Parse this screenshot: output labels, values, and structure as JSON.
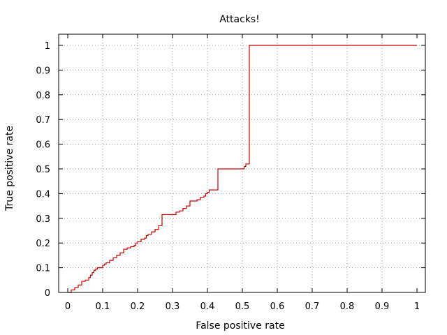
{
  "chart_data": {
    "type": "line",
    "title": "Attacks!",
    "xlabel": "False positive rate",
    "ylabel": "True positive rate",
    "xlim": [
      0,
      1
    ],
    "ylim": [
      0,
      1
    ],
    "x_ticks": [
      0,
      0.1,
      0.2,
      0.3,
      0.4,
      0.5,
      0.6,
      0.7,
      0.8,
      0.9,
      1
    ],
    "y_ticks": [
      0,
      0.1,
      0.2,
      0.3,
      0.4,
      0.5,
      0.6,
      0.7,
      0.8,
      0.9,
      1
    ],
    "x_tick_labels": [
      "0",
      "0.1",
      "0.2",
      "0.3",
      "0.4",
      "0.5",
      "0.6",
      "0.7",
      "0.8",
      "0.9",
      "1"
    ],
    "y_tick_labels": [
      "0",
      "0.1",
      "0.2",
      "0.3",
      "0.4",
      "0.5",
      "0.6",
      "0.7",
      "0.8",
      "0.9",
      "1"
    ],
    "grid": true,
    "line_color": "#cc0000",
    "series": [
      {
        "step": "post",
        "x": [
          0,
          0.01,
          0.02,
          0.03,
          0.04,
          0.05,
          0.06,
          0.065,
          0.07,
          0.075,
          0.08,
          0.085,
          0.09,
          0.1,
          0.105,
          0.11,
          0.12,
          0.13,
          0.14,
          0.15,
          0.16,
          0.17,
          0.18,
          0.19,
          0.195,
          0.2,
          0.21,
          0.22,
          0.225,
          0.23,
          0.24,
          0.25,
          0.26,
          0.27,
          0.31,
          0.32,
          0.33,
          0.34,
          0.35,
          0.37,
          0.38,
          0.39,
          0.395,
          0.4,
          0.405,
          0.43,
          0.505,
          0.51,
          0.52,
          1
        ],
        "y": [
          0,
          0.01,
          0.02,
          0.03,
          0.045,
          0.05,
          0.06,
          0.07,
          0.08,
          0.09,
          0.095,
          0.1,
          0.1,
          0.11,
          0.115,
          0.12,
          0.13,
          0.14,
          0.15,
          0.16,
          0.175,
          0.18,
          0.185,
          0.19,
          0.2,
          0.205,
          0.215,
          0.22,
          0.23,
          0.235,
          0.245,
          0.255,
          0.27,
          0.315,
          0.325,
          0.33,
          0.34,
          0.35,
          0.37,
          0.375,
          0.385,
          0.39,
          0.4,
          0.405,
          0.415,
          0.5,
          0.51,
          0.52,
          1,
          1
        ]
      }
    ]
  }
}
